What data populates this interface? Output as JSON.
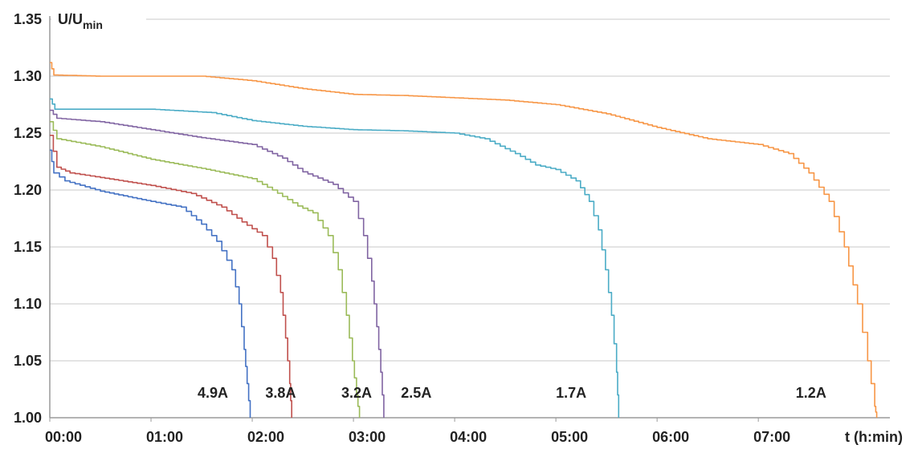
{
  "chart_data": {
    "type": "line",
    "title": "",
    "ylabel": {
      "main": "U/U",
      "subscript": "min"
    },
    "xlabel": "t (h:min)",
    "x_unit": "hours",
    "xlim": [
      0,
      8.3
    ],
    "ylim": [
      1.0,
      1.35
    ],
    "grid": {
      "horizontal": true,
      "vertical": false
    },
    "y_ticks": [
      1.0,
      1.05,
      1.1,
      1.15,
      1.2,
      1.25,
      1.3,
      1.35
    ],
    "y_tick_labels": [
      "1.00",
      "1.05",
      "1.10",
      "1.15",
      "1.20",
      "1.25",
      "1.30",
      "1.35"
    ],
    "x_ticks": [
      0,
      1,
      2,
      3,
      4,
      5,
      6,
      7
    ],
    "x_tick_labels": [
      "00:00",
      "01:00",
      "02:00",
      "03:00",
      "04:00",
      "05:00",
      "06:00",
      "07:00"
    ],
    "series": [
      {
        "name": "4.9A",
        "color": "#4472c4",
        "label_x": 1.46,
        "label_y": 1.022,
        "points": [
          [
            0,
            1.235
          ],
          [
            0.04,
            1.215
          ],
          [
            0.15,
            1.208
          ],
          [
            0.5,
            1.199
          ],
          [
            1.0,
            1.19
          ],
          [
            1.3,
            1.185
          ],
          [
            1.5,
            1.17
          ],
          [
            1.65,
            1.155
          ],
          [
            1.8,
            1.13
          ],
          [
            1.87,
            1.1
          ],
          [
            1.92,
            1.06
          ],
          [
            1.95,
            1.03
          ],
          [
            1.98,
            1.0
          ]
        ]
      },
      {
        "name": "3.8A",
        "color": "#c0504d",
        "label_x": 2.13,
        "label_y": 1.022,
        "points": [
          [
            0,
            1.248
          ],
          [
            0.07,
            1.22
          ],
          [
            0.2,
            1.215
          ],
          [
            0.5,
            1.211
          ],
          [
            1.0,
            1.204
          ],
          [
            1.4,
            1.197
          ],
          [
            1.7,
            1.185
          ],
          [
            1.9,
            1.172
          ],
          [
            2.1,
            1.16
          ],
          [
            2.2,
            1.14
          ],
          [
            2.28,
            1.11
          ],
          [
            2.33,
            1.07
          ],
          [
            2.37,
            1.03
          ],
          [
            2.39,
            1.0
          ]
        ]
      },
      {
        "name": "3.2A",
        "color": "#9bbb59",
        "label_x": 2.88,
        "label_y": 1.022,
        "points": [
          [
            0,
            1.26
          ],
          [
            0.07,
            1.245
          ],
          [
            0.5,
            1.238
          ],
          [
            1.0,
            1.227
          ],
          [
            1.5,
            1.219
          ],
          [
            2.0,
            1.21
          ],
          [
            2.2,
            1.2
          ],
          [
            2.45,
            1.186
          ],
          [
            2.6,
            1.18
          ],
          [
            2.75,
            1.16
          ],
          [
            2.85,
            1.13
          ],
          [
            2.93,
            1.09
          ],
          [
            2.99,
            1.05
          ],
          [
            3.03,
            1.02
          ],
          [
            3.06,
            1.0
          ]
        ]
      },
      {
        "name": "2.5A",
        "color": "#8064a2",
        "label_x": 3.47,
        "label_y": 1.022,
        "points": [
          [
            0,
            1.27
          ],
          [
            0.07,
            1.263
          ],
          [
            0.5,
            1.26
          ],
          [
            1.0,
            1.253
          ],
          [
            1.5,
            1.246
          ],
          [
            2.0,
            1.24
          ],
          [
            2.3,
            1.228
          ],
          [
            2.5,
            1.216
          ],
          [
            2.8,
            1.205
          ],
          [
            3.0,
            1.19
          ],
          [
            3.1,
            1.16
          ],
          [
            3.18,
            1.12
          ],
          [
            3.23,
            1.08
          ],
          [
            3.27,
            1.04
          ],
          [
            3.3,
            1.0
          ]
        ]
      },
      {
        "name": "1.7A",
        "color": "#4bacc6",
        "label_x": 5.0,
        "label_y": 1.022,
        "points": [
          [
            0,
            1.28
          ],
          [
            0.05,
            1.271
          ],
          [
            1.0,
            1.271
          ],
          [
            1.6,
            1.268
          ],
          [
            2.0,
            1.261
          ],
          [
            2.5,
            1.256
          ],
          [
            3.0,
            1.253
          ],
          [
            3.5,
            1.252
          ],
          [
            4.0,
            1.25
          ],
          [
            4.3,
            1.245
          ],
          [
            4.6,
            1.232
          ],
          [
            4.8,
            1.222
          ],
          [
            5.0,
            1.218
          ],
          [
            5.2,
            1.208
          ],
          [
            5.33,
            1.19
          ],
          [
            5.42,
            1.165
          ],
          [
            5.49,
            1.13
          ],
          [
            5.55,
            1.09
          ],
          [
            5.6,
            1.04
          ],
          [
            5.62,
            1.0
          ]
        ]
      },
      {
        "name": "1.2A",
        "color": "#f79646",
        "label_x": 7.37,
        "label_y": 1.022,
        "points": [
          [
            0,
            1.312
          ],
          [
            0.04,
            1.301
          ],
          [
            0.5,
            1.3
          ],
          [
            1.5,
            1.3
          ],
          [
            2.0,
            1.296
          ],
          [
            2.5,
            1.289
          ],
          [
            3.0,
            1.284
          ],
          [
            3.5,
            1.283
          ],
          [
            4.0,
            1.281
          ],
          [
            4.5,
            1.279
          ],
          [
            5.0,
            1.275
          ],
          [
            5.5,
            1.267
          ],
          [
            6.0,
            1.255
          ],
          [
            6.5,
            1.245
          ],
          [
            7.0,
            1.24
          ],
          [
            7.3,
            1.232
          ],
          [
            7.5,
            1.215
          ],
          [
            7.7,
            1.19
          ],
          [
            7.85,
            1.15
          ],
          [
            7.98,
            1.1
          ],
          [
            8.08,
            1.05
          ],
          [
            8.15,
            1.01
          ],
          [
            8.17,
            1.0
          ]
        ]
      }
    ]
  }
}
